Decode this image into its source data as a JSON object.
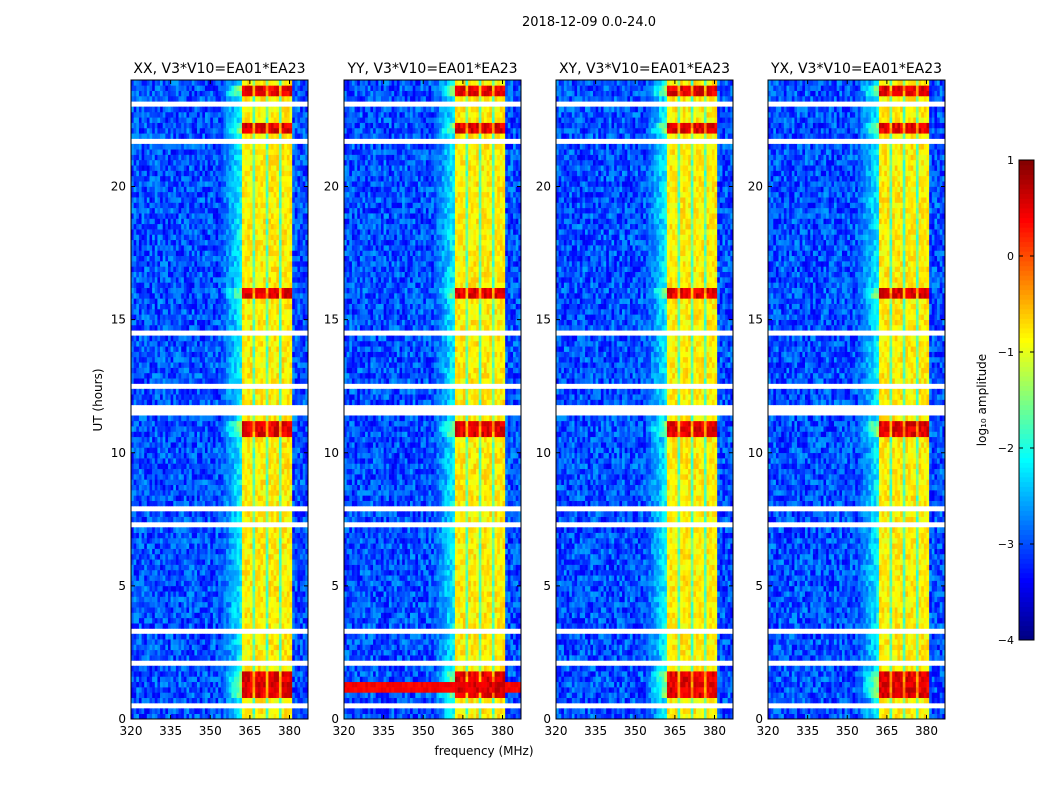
{
  "chart_data": {
    "type": "heatmap",
    "title": "2018-12-09 0.0-24.0",
    "xlabel": "frequency (MHz)",
    "ylabel": "UT (hours)",
    "xlim": [
      320,
      387
    ],
    "ylim": [
      0,
      24
    ],
    "xticks": [
      320,
      335,
      350,
      365,
      380
    ],
    "yticks": [
      0,
      5,
      10,
      15,
      20
    ],
    "panels": [
      {
        "title": "XX, V3*V10=EA01*EA23",
        "show_ylabel": true,
        "low_freq_burst": false
      },
      {
        "title": "YY, V3*V10=EA01*EA23",
        "show_ylabel": false,
        "low_freq_burst": true
      },
      {
        "title": "XY, V3*V10=EA01*EA23",
        "show_ylabel": false,
        "low_freq_burst": false
      },
      {
        "title": "YX, V3*V10=EA01*EA23",
        "show_ylabel": false,
        "low_freq_burst": false
      }
    ],
    "model": {
      "background_log_amp": -3.0,
      "rfi_band_mhz": [
        362,
        381
      ],
      "rfi_band_log_amp": -0.8,
      "band_gaps_mhz": [
        366.5,
        371.5,
        376.5
      ],
      "edge_fade_mhz": [
        354,
        362
      ],
      "flagged_hours": [
        [
          0.35,
          0.55
        ],
        [
          1.95,
          2.1
        ],
        [
          3.2,
          3.45
        ],
        [
          6.55,
          6.65
        ],
        [
          7.3,
          7.5
        ],
        [
          7.9,
          8.0
        ],
        [
          11.45,
          11.8
        ],
        [
          12.35,
          12.6
        ],
        [
          13.0,
          13.05
        ],
        [
          14.45,
          14.55
        ],
        [
          15.0,
          15.05
        ],
        [
          17.5,
          17.6
        ],
        [
          21.55,
          21.7
        ],
        [
          22.9,
          23.15
        ]
      ],
      "burst_hours": [
        [
          0.8,
          1.9
        ],
        [
          10.5,
          11.2
        ],
        [
          15.8,
          16.1
        ],
        [
          21.9,
          22.3
        ],
        [
          23.3,
          23.8
        ]
      ],
      "low_freq_burst_hours": [
        1.0,
        1.35
      ]
    },
    "colorbar": {
      "label": "log₁₀ amplitude",
      "range": [
        -4,
        1
      ],
      "ticks": [
        "1",
        "0",
        "−1",
        "−2",
        "−3",
        "−4"
      ],
      "colormap": "jet"
    }
  }
}
